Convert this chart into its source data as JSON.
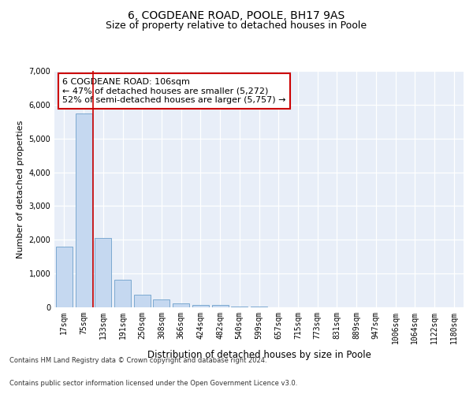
{
  "title1": "6, COGDEANE ROAD, POOLE, BH17 9AS",
  "title2": "Size of property relative to detached houses in Poole",
  "xlabel": "Distribution of detached houses by size in Poole",
  "ylabel": "Number of detached properties",
  "categories": [
    "17sqm",
    "75sqm",
    "133sqm",
    "191sqm",
    "250sqm",
    "308sqm",
    "366sqm",
    "424sqm",
    "482sqm",
    "540sqm",
    "599sqm",
    "657sqm",
    "715sqm",
    "773sqm",
    "831sqm",
    "889sqm",
    "947sqm",
    "1006sqm",
    "1064sqm",
    "1122sqm",
    "1180sqm"
  ],
  "values": [
    1800,
    5750,
    2050,
    820,
    370,
    230,
    110,
    80,
    60,
    30,
    15,
    5,
    2,
    1,
    0,
    0,
    0,
    0,
    0,
    0,
    0
  ],
  "bar_color": "#c5d8f0",
  "bar_edge_color": "#6da0cb",
  "vline_color": "#cc0000",
  "annotation_text": "6 COGDEANE ROAD: 106sqm\n← 47% of detached houses are smaller (5,272)\n52% of semi-detached houses are larger (5,757) →",
  "annotation_box_color": "white",
  "annotation_box_edge_color": "#cc0000",
  "ylim": [
    0,
    7000
  ],
  "yticks": [
    0,
    1000,
    2000,
    3000,
    4000,
    5000,
    6000,
    7000
  ],
  "footer1": "Contains HM Land Registry data © Crown copyright and database right 2024.",
  "footer2": "Contains public sector information licensed under the Open Government Licence v3.0.",
  "plot_bg_color": "#e8eef8",
  "fig_bg_color": "#ffffff",
  "title1_fontsize": 10,
  "title2_fontsize": 9,
  "xlabel_fontsize": 8.5,
  "ylabel_fontsize": 8,
  "tick_fontsize": 7,
  "annot_fontsize": 8,
  "footer_fontsize": 6
}
